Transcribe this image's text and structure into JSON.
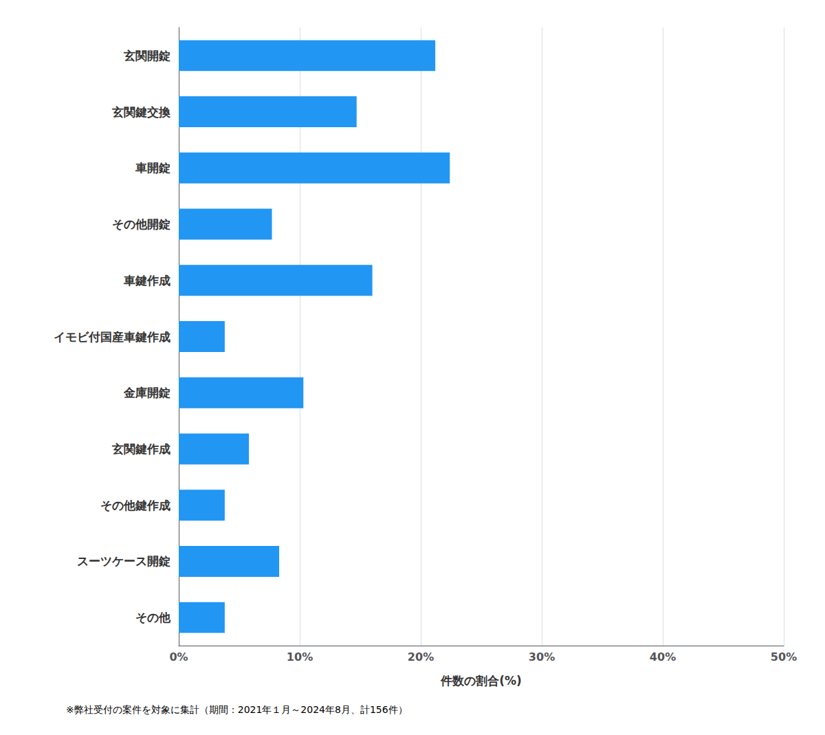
{
  "chart_data": {
    "type": "bar",
    "orientation": "horizontal",
    "categories": [
      "玄関開錠",
      "玄関鍵交換",
      "車開錠",
      "その他開錠",
      "車鍵作成",
      "イモビ付国産車鍵作成",
      "金庫開錠",
      "玄関鍵作成",
      "その他鍵作成",
      "スーツケース開錠",
      "その他"
    ],
    "values": [
      21.2,
      14.7,
      22.4,
      7.7,
      16.0,
      3.8,
      10.3,
      5.8,
      3.8,
      8.3,
      3.8
    ],
    "color": "#2196F3",
    "xlabel": "件数の割合(%)",
    "xlim": [
      0,
      50
    ],
    "xticks": [
      {
        "value": 0,
        "label": "0%"
      },
      {
        "value": 10,
        "label": "10%"
      },
      {
        "value": 20,
        "label": "20%"
      },
      {
        "value": 30,
        "label": "30%"
      },
      {
        "value": 40,
        "label": "40%"
      },
      {
        "value": 50,
        "label": "50%"
      }
    ],
    "grid": true,
    "footnote": "※弊社受付の案件を対象に集計（期間：2021年１月～2024年8月、計156件）"
  }
}
